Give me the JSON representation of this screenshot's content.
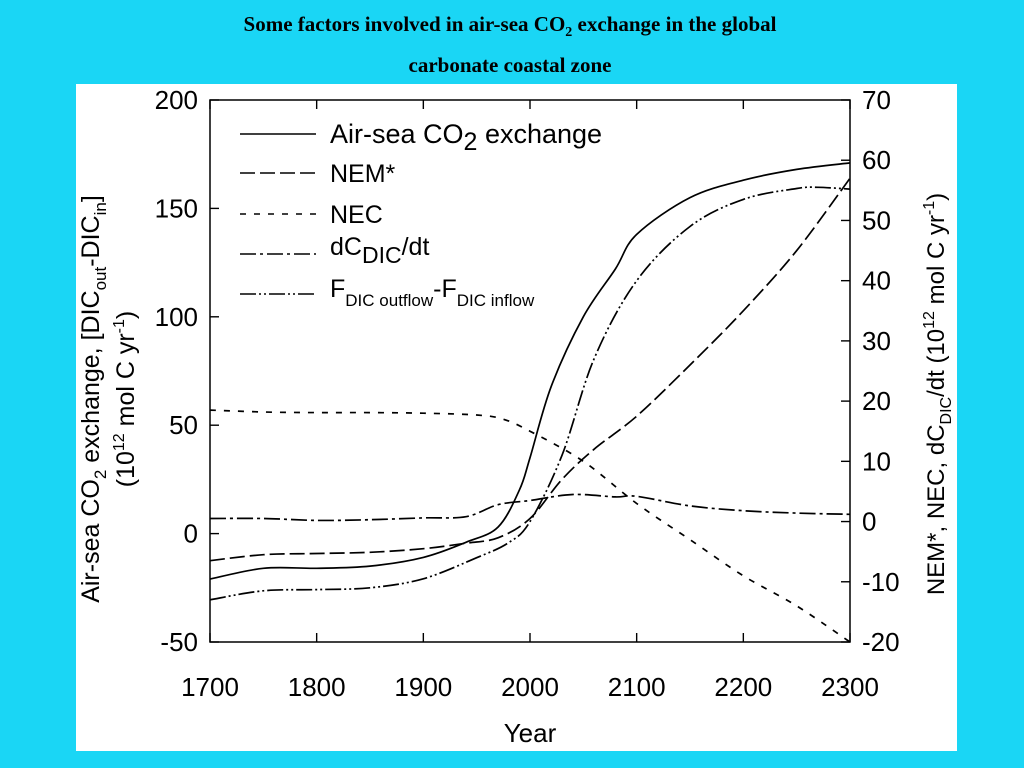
{
  "slide": {
    "title_line1_pre": "Some factors involved in air-sea CO",
    "title_line1_sub": "2",
    "title_line1_post": " exchange in the global",
    "title_line2": "carbonate coastal zone"
  },
  "colors": {
    "background": "#1ad6f5",
    "panel": "#ffffff",
    "ink": "#000000"
  },
  "chart_data": {
    "type": "line",
    "title": "",
    "xlabel": "Year",
    "xlim": [
      1700,
      2300
    ],
    "x_ticks": [
      1700,
      1800,
      1900,
      2000,
      2100,
      2200,
      2300
    ],
    "ylabel_left": {
      "pre": "Air-sea CO",
      "sub": "2",
      "post": " exchange,  [DIC",
      "sub_out": "out",
      "mid": "-DIC",
      "sub_in": "in",
      "end": "]",
      "line2_pre": "(10",
      "line2_sup": "12",
      "line2_mid": " mol C yr",
      "line2_sup2": "-1",
      "line2_end": ")"
    },
    "ylim_left": [
      -50,
      200
    ],
    "y_ticks_left": [
      -50,
      0,
      50,
      100,
      150,
      200
    ],
    "ylabel_right": {
      "pre": "NEM*, NEC, dC",
      "sub": "DIC",
      "mid": "/dt (10",
      "sup": "12",
      "mid2": " mol C yr",
      "sup2": "-1",
      "end": ")"
    },
    "ylim_right": [
      -20,
      70
    ],
    "y_ticks_right": [
      -20,
      -10,
      0,
      10,
      20,
      30,
      40,
      50,
      60,
      70
    ],
    "legend_position": "top-left",
    "legend": [
      {
        "text": "Air-sea CO",
        "sub": "2",
        "post": " exchange"
      },
      {
        "text": "NEM*"
      },
      {
        "text": "NEC"
      },
      {
        "text": "dC",
        "sub": "DIC",
        "post": "/dt"
      },
      {
        "text": "F",
        "sub": "DIC outflow",
        "post": "-F",
        "sub2": "DIC inflow"
      }
    ],
    "series": [
      {
        "axis": "left",
        "dash": "solid",
        "x": [
          1700,
          1750,
          1800,
          1850,
          1900,
          1940,
          1970,
          1990,
          2000,
          2020,
          2050,
          2080,
          2100,
          2150,
          2200,
          2250,
          2300
        ],
        "y": [
          -21,
          -16,
          -16,
          -15,
          -11,
          -4,
          3,
          20,
          35,
          68,
          100,
          122,
          138,
          155,
          163,
          168,
          171
        ]
      },
      {
        "axis": "right",
        "dash": "long",
        "x": [
          1700,
          1750,
          1800,
          1850,
          1900,
          1940,
          1970,
          2000,
          2030,
          2060,
          2100,
          2150,
          2200,
          2250,
          2300
        ],
        "y": [
          -6.5,
          -5.5,
          -5.3,
          -5.1,
          -4.5,
          -3.6,
          -2.7,
          0.5,
          7,
          12,
          17.5,
          26,
          35,
          45,
          57
        ]
      },
      {
        "axis": "right",
        "dash": "short",
        "x": [
          1700,
          1750,
          1800,
          1850,
          1900,
          1950,
          1975,
          2000,
          2050,
          2100,
          2150,
          2200,
          2250,
          2300
        ],
        "y": [
          18.5,
          18.2,
          18.1,
          18.1,
          18,
          17.7,
          17,
          15,
          10,
          3,
          -3,
          -9,
          -14,
          -20
        ]
      },
      {
        "axis": "right",
        "dash": "dashdot",
        "x": [
          1700,
          1750,
          1800,
          1850,
          1900,
          1940,
          1970,
          2000,
          2040,
          2080,
          2100,
          2150,
          2200,
          2250,
          2300
        ],
        "y": [
          0.5,
          0.5,
          0.2,
          0.3,
          0.6,
          0.8,
          2.8,
          3.5,
          4.5,
          4.1,
          4.2,
          2.6,
          1.8,
          1.4,
          1.2
        ]
      },
      {
        "axis": "right",
        "dash": "dashdotdot",
        "x": [
          1700,
          1750,
          1800,
          1850,
          1900,
          1950,
          1980,
          2000,
          2030,
          2060,
          2100,
          2150,
          2200,
          2250,
          2270,
          2300
        ],
        "y": [
          -13,
          -11.5,
          -11.3,
          -11,
          -9.5,
          -6,
          -3.5,
          0,
          11,
          27,
          40,
          49,
          53.5,
          55.3,
          55.5,
          55.2
        ]
      }
    ]
  }
}
